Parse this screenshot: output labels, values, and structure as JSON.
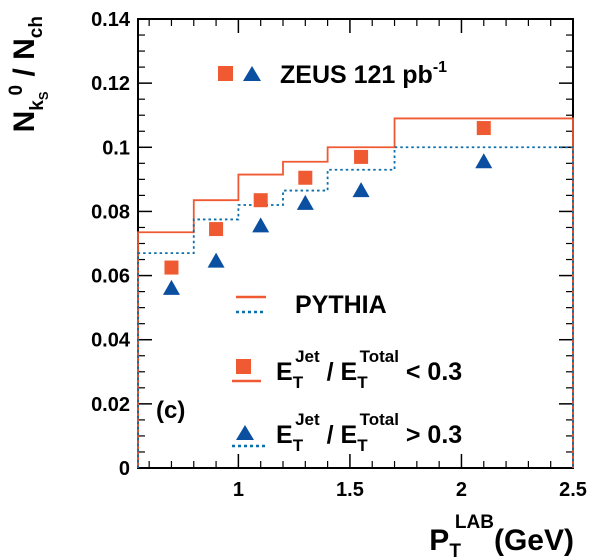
{
  "chart_data": {
    "type": "scatter",
    "panel_label": "(c)",
    "xlabel": {
      "main": "P",
      "sub": "T",
      "sup": "LAB",
      "unit": "(GeV)"
    },
    "ylabel": {
      "n1": "N",
      "sub1": "k",
      "subsub1": "S",
      "sup1": "0",
      "slash": " / ",
      "n2": "N",
      "sub2": "ch"
    },
    "xlim": [
      0.55,
      2.5
    ],
    "ylim": [
      0,
      0.14
    ],
    "x_ticks": [
      {
        "v": 1,
        "label": "1"
      },
      {
        "v": 1.5,
        "label": "1.5"
      },
      {
        "v": 2,
        "label": "2"
      },
      {
        "v": 2.5,
        "label": "2.5"
      }
    ],
    "y_ticks": [
      {
        "v": 0,
        "label": "0"
      },
      {
        "v": 0.02,
        "label": "0.02"
      },
      {
        "v": 0.04,
        "label": "0.04"
      },
      {
        "v": 0.06,
        "label": "0.06"
      },
      {
        "v": 0.08,
        "label": "0.08"
      },
      {
        "v": 0.1,
        "label": "0.1"
      },
      {
        "v": 0.12,
        "label": "0.12"
      },
      {
        "v": 0.14,
        "label": "0.14"
      }
    ],
    "bin_edges": [
      0.55,
      0.8,
      1.0,
      1.2,
      1.4,
      1.7,
      2.5
    ],
    "series": [
      {
        "key": "low",
        "marker": "square",
        "color": "#f05a32",
        "x": [
          0.7,
          0.9,
          1.1,
          1.3,
          1.55,
          2.1
        ],
        "y": [
          0.0625,
          0.0745,
          0.0835,
          0.0905,
          0.097,
          0.106
        ]
      },
      {
        "key": "high",
        "marker": "triangle",
        "color": "#0a4fa0",
        "x": [
          0.7,
          0.9,
          1.1,
          1.3,
          1.55,
          2.1
        ],
        "y": [
          0.056,
          0.0645,
          0.0755,
          0.0825,
          0.0865,
          0.0955
        ]
      }
    ],
    "pythia": [
      {
        "key": "low",
        "style": "solid",
        "color": "#f05a32",
        "y": [
          0.0735,
          0.0835,
          0.0915,
          0.0955,
          0.1,
          0.109
        ]
      },
      {
        "key": "high",
        "style": "dotted",
        "color": "#0a6ea8",
        "y": [
          0.067,
          0.0775,
          0.082,
          0.0865,
          0.093,
          0.1
        ]
      }
    ],
    "legend": {
      "zeus": {
        "text": "ZEUS 121 pb",
        "sup": "-1"
      },
      "pythia": "PYTHIA",
      "low": {
        "e": "E",
        "sub": "T",
        "sup": "Jet",
        "slash": " / ",
        "e2": "E",
        "sub2": "T",
        "sup2": "Total",
        "cmp": " < 0.3"
      },
      "high": {
        "e": "E",
        "sub": "T",
        "sup": "Jet",
        "slash": " / ",
        "e2": "E",
        "sub2": "T",
        "sup2": "Total",
        "cmp": " > 0.3"
      }
    }
  }
}
